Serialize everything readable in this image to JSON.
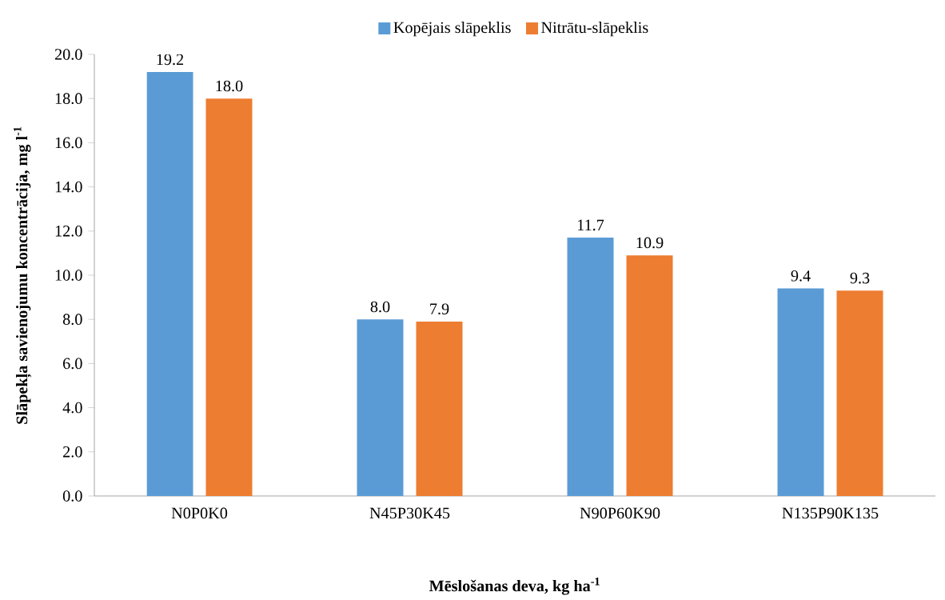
{
  "chart_data": {
    "type": "bar",
    "xlabel": "**Mēslošanas deva, kg ha$^{-1}$**",
    "ylabel": "**Slāpekļa savienojumu koncentrācija,  mg l$^{-1}$**",
    "categories": [
      "N0P0K0",
      "N45P30K45",
      "N90P60K90",
      "N135P90K135"
    ],
    "series": [
      {
        "name": "Kopējais slāpeklis",
        "color": "#5b9bd5",
        "values": [
          19.2,
          8.0,
          11.7,
          9.4
        ],
        "value_labels": [
          "19.2",
          "8.0",
          "11.7",
          "9.4"
        ]
      },
      {
        "name": "Nitrātu-slāpeklis",
        "color": "#ed7d31",
        "values": [
          18.0,
          7.9,
          10.9,
          9.3
        ],
        "value_labels": [
          "18.0",
          "7.9",
          "10.9",
          "9.3"
        ]
      }
    ],
    "ylim": [
      0,
      20
    ],
    "yticks": [
      {
        "value": 0,
        "label": "0.0"
      },
      {
        "value": 2,
        "label": "2.0"
      },
      {
        "value": 4,
        "label": "4.0"
      },
      {
        "value": 6,
        "label": "6.0"
      },
      {
        "value": 8,
        "label": "8.0"
      },
      {
        "value": 10,
        "label": "10.0"
      },
      {
        "value": 12,
        "label": "12.0"
      },
      {
        "value": 14,
        "label": "14.0"
      },
      {
        "value": 16,
        "label": "16.0"
      },
      {
        "value": 18,
        "label": "18.0"
      },
      {
        "value": 20,
        "label": "20.0"
      }
    ],
    "grid": false,
    "legend": "top"
  }
}
